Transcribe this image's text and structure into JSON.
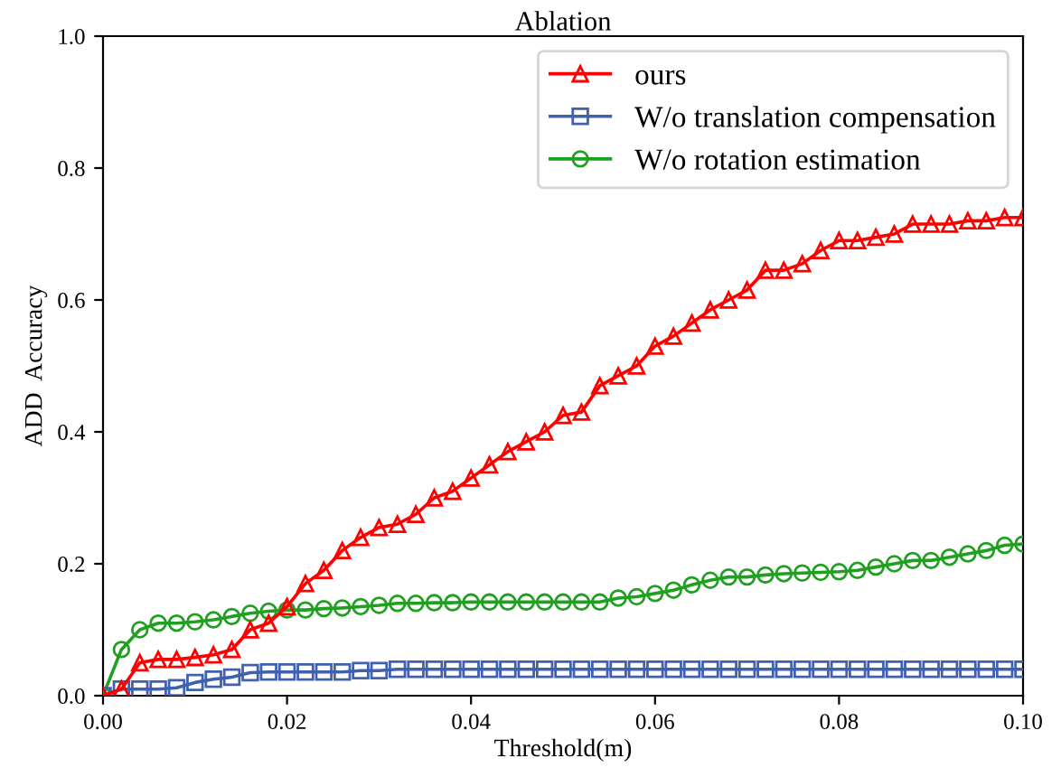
{
  "chart_data": {
    "type": "line",
    "title": "Ablation",
    "xlabel": "Threshold(m)",
    "ylabel": "ADD  Accuracy",
    "x": [
      0,
      0.002,
      0.004,
      0.006,
      0.008,
      0.01,
      0.012,
      0.014,
      0.016,
      0.018,
      0.02,
      0.022,
      0.024,
      0.026,
      0.028,
      0.03,
      0.032,
      0.034,
      0.036,
      0.038,
      0.04,
      0.042,
      0.044,
      0.046,
      0.048,
      0.05,
      0.052,
      0.054,
      0.056,
      0.058,
      0.06,
      0.062,
      0.064,
      0.066,
      0.068,
      0.07,
      0.072,
      0.074,
      0.076,
      0.078,
      0.08,
      0.082,
      0.084,
      0.086,
      0.088,
      0.09,
      0.092,
      0.094,
      0.096,
      0.098,
      0.1
    ],
    "series": [
      {
        "name": "ours",
        "color": "#ff0000",
        "marker": "triangle",
        "values": [
          0,
          0.01,
          0.05,
          0.055,
          0.055,
          0.058,
          0.062,
          0.07,
          0.1,
          0.11,
          0.135,
          0.17,
          0.19,
          0.22,
          0.24,
          0.255,
          0.26,
          0.275,
          0.3,
          0.31,
          0.33,
          0.35,
          0.37,
          0.385,
          0.4,
          0.425,
          0.43,
          0.47,
          0.485,
          0.5,
          0.53,
          0.545,
          0.565,
          0.585,
          0.6,
          0.615,
          0.645,
          0.645,
          0.655,
          0.675,
          0.69,
          0.69,
          0.695,
          0.7,
          0.715,
          0.715,
          0.715,
          0.72,
          0.72,
          0.725,
          0.725
        ]
      },
      {
        "name": "W/o translation compensation",
        "color": "#4060b0",
        "marker": "square",
        "values": [
          0,
          0.01,
          0.01,
          0.01,
          0.012,
          0.02,
          0.025,
          0.028,
          0.035,
          0.036,
          0.036,
          0.036,
          0.036,
          0.036,
          0.038,
          0.038,
          0.04,
          0.04,
          0.04,
          0.04,
          0.04,
          0.04,
          0.04,
          0.04,
          0.04,
          0.04,
          0.04,
          0.04,
          0.04,
          0.04,
          0.04,
          0.04,
          0.04,
          0.04,
          0.04,
          0.04,
          0.04,
          0.04,
          0.04,
          0.04,
          0.04,
          0.04,
          0.04,
          0.04,
          0.04,
          0.04,
          0.04,
          0.04,
          0.04,
          0.04,
          0.04
        ]
      },
      {
        "name": "W/o rotation estimation",
        "color": "#20a020",
        "marker": "circle",
        "values": [
          0,
          0.07,
          0.1,
          0.11,
          0.11,
          0.112,
          0.115,
          0.12,
          0.125,
          0.128,
          0.13,
          0.13,
          0.132,
          0.133,
          0.135,
          0.137,
          0.14,
          0.14,
          0.141,
          0.141,
          0.142,
          0.142,
          0.142,
          0.142,
          0.142,
          0.142,
          0.142,
          0.142,
          0.148,
          0.15,
          0.155,
          0.16,
          0.168,
          0.175,
          0.18,
          0.18,
          0.183,
          0.185,
          0.186,
          0.187,
          0.188,
          0.19,
          0.195,
          0.2,
          0.205,
          0.205,
          0.21,
          0.215,
          0.22,
          0.228,
          0.23
        ]
      }
    ],
    "xlim": [
      0,
      0.1
    ],
    "xticks": [
      {
        "value": 0,
        "label": "0.00"
      },
      0.02,
      0.04,
      0.06,
      0.08,
      {
        "value": 0.1,
        "label": "0.10"
      }
    ],
    "ylim": [
      0,
      1
    ],
    "yticks": [
      {
        "value": 0,
        "label": "0.0"
      },
      0.2,
      0.4,
      0.6,
      0.8,
      {
        "value": 1,
        "label": "1.0"
      }
    ],
    "legend": "top right",
    "grid": false,
    "line_style": "solid"
  }
}
